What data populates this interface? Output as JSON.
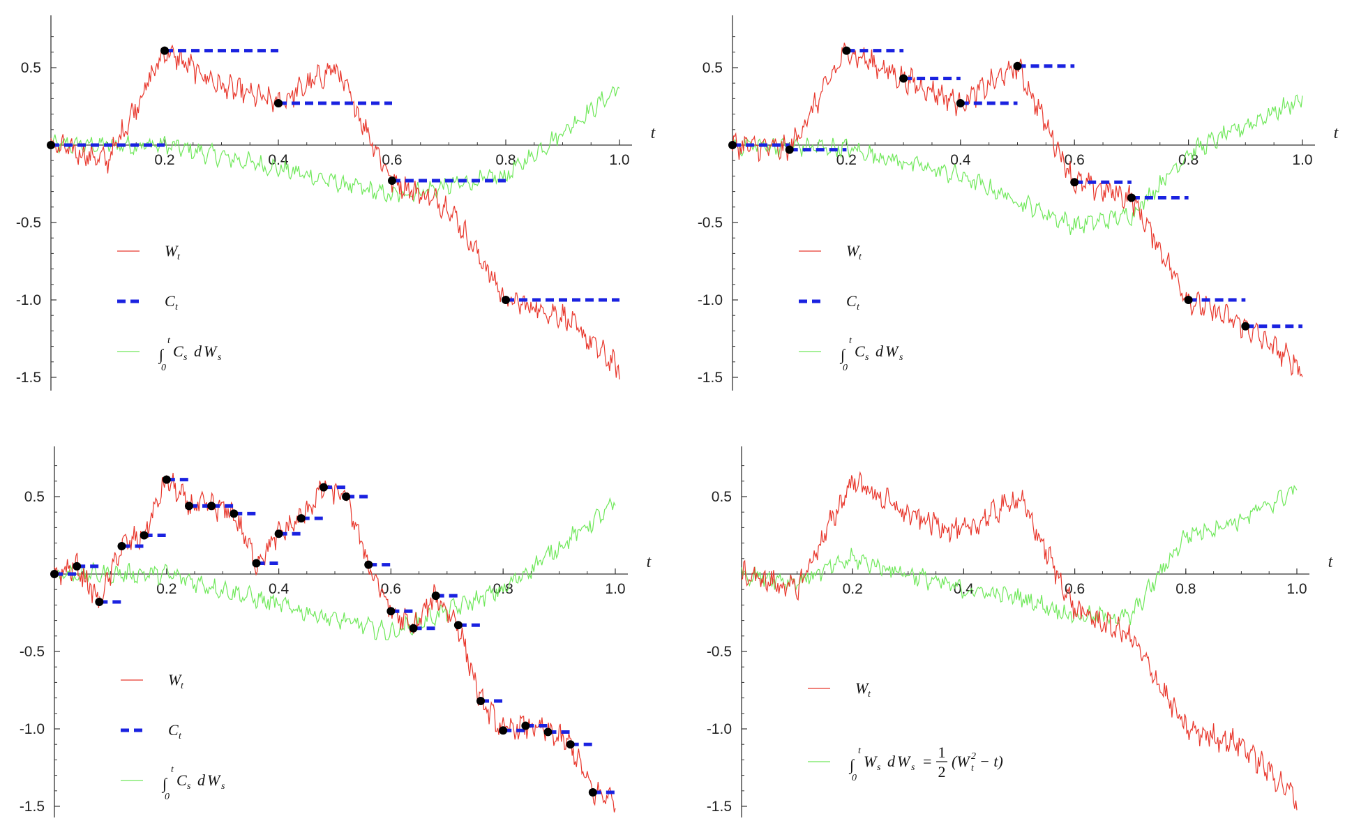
{
  "colors": {
    "wiener": "#e8372c",
    "step": "#1a22e0",
    "integral": "#6fe85a",
    "point": "#000000",
    "axis": "#333333"
  },
  "legend": {
    "w_label": "W",
    "w_sub": "t",
    "c_label": "C",
    "c_sub": "t",
    "int_sym": "∫",
    "int_upper": "t",
    "int_lower": "0",
    "int_body": "C",
    "int_body_sub": "s",
    "int_d": "d",
    "int_w": "W",
    "int_w_sub": "s",
    "ito_body": "W",
    "ito_body_sub": "s",
    "ito_eq": "=",
    "ito_half_num": "1",
    "ito_half_den": "2",
    "ito_open": "(W",
    "ito_sup": "2",
    "ito_sub": "t",
    "ito_close": "− t)"
  },
  "chart_data": [
    {
      "type": "line",
      "panel": "top-left",
      "xlabel": "t",
      "xlim": [
        0,
        1
      ],
      "ylim": [
        -1.55,
        0.8
      ],
      "x_ticks": [
        "0.2",
        "0.4",
        "0.6",
        "0.8",
        "1.0"
      ],
      "y_ticks": [
        "0.5",
        "-0.5",
        "-1.0",
        "-1.5"
      ],
      "legend_placement": "lower-left",
      "series": [
        {
          "name": "W_t",
          "style": "thin red",
          "x": [
            0,
            0.1,
            0.2,
            0.3,
            0.4,
            0.5,
            0.6,
            0.7,
            0.8,
            0.9,
            1.0
          ],
          "values": [
            0,
            -0.1,
            0.61,
            0.38,
            0.27,
            0.5,
            -0.23,
            -0.4,
            -1.0,
            -1.1,
            -1.45
          ]
        },
        {
          "name": "C_t",
          "style": "blue dashed steps",
          "x": [
            0,
            0.2,
            0.4,
            0.6,
            0.8
          ],
          "values": [
            0,
            0.61,
            0.27,
            -0.23,
            -1.0
          ]
        },
        {
          "name": "∫ C_s dW_s",
          "style": "thin green",
          "x": [
            0,
            0.2,
            0.4,
            0.6,
            0.8,
            1.0
          ],
          "values": [
            0,
            0,
            -0.15,
            -0.33,
            -0.2,
            0.37
          ]
        }
      ]
    },
    {
      "type": "line",
      "panel": "top-right",
      "xlabel": "t",
      "xlim": [
        0,
        1
      ],
      "ylim": [
        -1.55,
        0.8
      ],
      "x_ticks": [
        "0.2",
        "0.4",
        "0.6",
        "0.8",
        "1.0"
      ],
      "y_ticks": [
        "0.5",
        "-0.5",
        "-1.0",
        "-1.5"
      ],
      "legend_placement": "lower-left",
      "series": [
        {
          "name": "W_t",
          "style": "thin red",
          "x": [
            0,
            0.1,
            0.2,
            0.3,
            0.4,
            0.5,
            0.6,
            0.7,
            0.8,
            0.9,
            1.0
          ],
          "values": [
            0,
            -0.03,
            0.61,
            0.43,
            0.27,
            0.51,
            -0.24,
            -0.34,
            -1.0,
            -1.17,
            -1.45
          ]
        },
        {
          "name": "C_t",
          "style": "blue dashed steps",
          "x": [
            0,
            0.1,
            0.2,
            0.3,
            0.4,
            0.5,
            0.6,
            0.7,
            0.8,
            0.9
          ],
          "values": [
            0,
            -0.03,
            0.61,
            0.43,
            0.27,
            0.51,
            -0.24,
            -0.34,
            -1.0,
            -1.17
          ]
        },
        {
          "name": "∫ C_s dW_s",
          "style": "thin green",
          "x": [
            0,
            0.2,
            0.4,
            0.6,
            0.7,
            0.8,
            1.0
          ],
          "values": [
            0,
            -0.02,
            -0.2,
            -0.52,
            -0.45,
            -0.05,
            0.3
          ]
        }
      ]
    },
    {
      "type": "line",
      "panel": "bottom-left",
      "xlabel": "t",
      "xlim": [
        0,
        1
      ],
      "ylim": [
        -1.55,
        0.8
      ],
      "x_ticks": [
        "0.2",
        "0.4",
        "0.6",
        "0.8",
        "1.0"
      ],
      "y_ticks": [
        "0.5",
        "-0.5",
        "-1.0",
        "-1.5"
      ],
      "legend_placement": "lower-left",
      "series": [
        {
          "name": "W_t",
          "style": "thin red",
          "x": [
            0,
            0.04,
            0.08,
            0.12,
            0.16,
            0.2,
            0.24,
            0.28,
            0.32,
            0.36,
            0.4,
            0.44,
            0.48,
            0.52,
            0.56,
            0.6,
            0.64,
            0.68,
            0.72,
            0.76,
            0.8,
            0.84,
            0.88,
            0.92,
            0.96,
            1.0
          ],
          "values": [
            0,
            0.05,
            -0.18,
            0.18,
            0.25,
            0.61,
            0.44,
            0.44,
            0.39,
            0.07,
            0.26,
            0.36,
            0.56,
            0.5,
            0.06,
            -0.24,
            -0.35,
            -0.14,
            -0.33,
            -0.82,
            -1.01,
            -0.98,
            -1.02,
            -1.1,
            -1.41,
            -1.45
          ]
        },
        {
          "name": "C_t",
          "style": "blue dashed steps",
          "x": [
            0,
            0.04,
            0.08,
            0.12,
            0.16,
            0.2,
            0.24,
            0.28,
            0.32,
            0.36,
            0.4,
            0.44,
            0.48,
            0.52,
            0.56,
            0.6,
            0.64,
            0.68,
            0.72,
            0.76,
            0.8,
            0.84,
            0.88,
            0.92,
            0.96
          ],
          "values": [
            0,
            0.05,
            -0.18,
            0.18,
            0.25,
            0.61,
            0.44,
            0.44,
            0.39,
            0.07,
            0.26,
            0.36,
            0.56,
            0.5,
            0.06,
            -0.24,
            -0.35,
            -0.14,
            -0.33,
            -0.82,
            -1.01,
            -0.98,
            -1.02,
            -1.1,
            -1.41
          ]
        },
        {
          "name": "∫ C_s dW_s",
          "style": "thin green",
          "x": [
            0,
            0.2,
            0.4,
            0.6,
            0.8,
            1.0
          ],
          "values": [
            0,
            0.0,
            -0.2,
            -0.38,
            -0.1,
            0.45
          ]
        }
      ]
    },
    {
      "type": "line",
      "panel": "bottom-right",
      "xlabel": "t",
      "xlim": [
        0,
        1
      ],
      "ylim": [
        -1.55,
        0.8
      ],
      "x_ticks": [
        "0.2",
        "0.4",
        "0.6",
        "0.8",
        "1.0"
      ],
      "y_ticks": [
        "0.5",
        "-0.5",
        "-1.0",
        "-1.5"
      ],
      "legend_placement": "lower-left",
      "series": [
        {
          "name": "W_t",
          "style": "thin red",
          "x": [
            0,
            0.1,
            0.2,
            0.3,
            0.4,
            0.5,
            0.6,
            0.7,
            0.8,
            0.9,
            1.0
          ],
          "values": [
            0,
            -0.1,
            0.61,
            0.38,
            0.27,
            0.5,
            -0.23,
            -0.4,
            -1.0,
            -1.1,
            -1.45
          ]
        },
        {
          "name": "∫ W_s dW_s = 1/2 (W_t² − t)",
          "style": "thin green",
          "x": [
            0,
            0.1,
            0.2,
            0.3,
            0.4,
            0.5,
            0.6,
            0.7,
            0.8,
            0.9,
            1.0
          ],
          "values": [
            0,
            -0.05,
            0.1,
            0.0,
            -0.1,
            -0.15,
            -0.27,
            -0.28,
            0.25,
            0.35,
            0.55
          ]
        }
      ]
    }
  ]
}
